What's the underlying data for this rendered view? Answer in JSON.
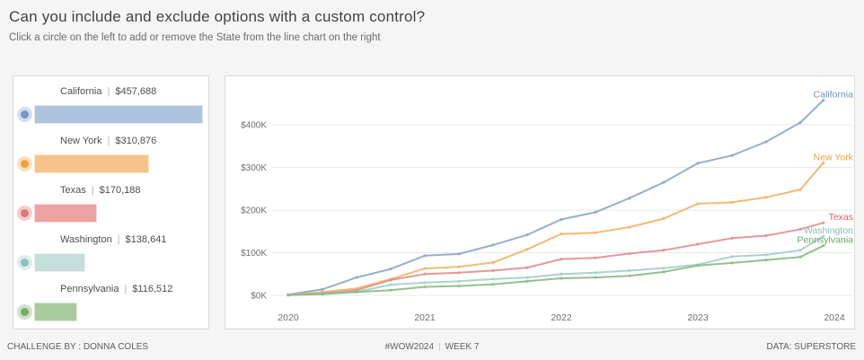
{
  "header": {
    "title": "Can you include and exclude options with a custom control?",
    "subtitle": "Click a circle on the left to add or remove the State from the line chart on the right"
  },
  "footer": {
    "left": "CHALLENGE BY : DONNA COLES",
    "center_tag": "#WOW2024",
    "center_sep": "|",
    "center_week": "WEEK 7",
    "right": "DATA: SUPERSTORE"
  },
  "control_panel": {
    "items": [
      {
        "state": "California",
        "separator": "|",
        "value": "$457,688",
        "value_k": 457.688,
        "included": true,
        "bar_color": "#aec3dd",
        "ring_color": "#aec3dd",
        "dot_color": "#7596bf"
      },
      {
        "state": "New York",
        "separator": "|",
        "value": "$310,876",
        "value_k": 310.876,
        "included": true,
        "bar_color": "#f6c48b",
        "ring_color": "#f6c48b",
        "dot_color": "#ef9f42"
      },
      {
        "state": "Texas",
        "separator": "|",
        "value": "$170,188",
        "value_k": 170.188,
        "included": true,
        "bar_color": "#eca3a2",
        "ring_color": "#eca3a2",
        "dot_color": "#dd7a79"
      },
      {
        "state": "Washington",
        "separator": "|",
        "value": "$138,641",
        "value_k": 138.641,
        "included": true,
        "bar_color": "#c6dfdc",
        "ring_color": "#c6dfdc",
        "dot_color": "#8fc2bc"
      },
      {
        "state": "Pennsylvania",
        "separator": "|",
        "value": "$116,512",
        "value_k": 116.512,
        "included": true,
        "bar_color": "#a9cb9d",
        "ring_color": "#a9cb9d",
        "dot_color": "#79ab6b"
      }
    ]
  },
  "chart_data": {
    "type": "line",
    "title": "",
    "xlabel": "",
    "ylabel": "",
    "unit": "cumulative sales, USD thousands",
    "grid": "horizontal",
    "legend_position": "line-end-labels",
    "x_ticks": [
      "2020",
      "2021",
      "2022",
      "2023",
      "2024"
    ],
    "x_tick_values": [
      2020,
      2021,
      2022,
      2023,
      2024
    ],
    "y_ticks": [
      "$0K",
      "$100K",
      "$200K",
      "$300K",
      "$400K"
    ],
    "y_tick_values": [
      0,
      100,
      200,
      300,
      400
    ],
    "xlim": [
      2020,
      2024
    ],
    "ylim": [
      0,
      495
    ],
    "x": [
      2020.0,
      2020.25,
      2020.5,
      2020.75,
      2021.0,
      2021.25,
      2021.5,
      2021.75,
      2022.0,
      2022.25,
      2022.5,
      2022.75,
      2023.0,
      2023.25,
      2023.5,
      2023.75,
      2023.92
    ],
    "series": [
      {
        "name": "California",
        "color": "#8aa7c6",
        "label_color": "#6e94bd",
        "values": [
          2,
          14,
          42,
          62,
          93,
          97,
          118,
          142,
          178,
          195,
          228,
          265,
          310,
          328,
          360,
          405,
          457.688
        ]
      },
      {
        "name": "New York",
        "color": "#f2b267",
        "label_color": "#ef9f42",
        "values": [
          1,
          8,
          16,
          38,
          63,
          67,
          77,
          108,
          144,
          147,
          160,
          180,
          215,
          218,
          230,
          248,
          310.876
        ]
      },
      {
        "name": "Texas",
        "color": "#e08f8e",
        "label_color": "#d95f5f",
        "values": [
          1,
          5,
          12,
          36,
          50,
          53,
          58,
          65,
          85,
          88,
          98,
          106,
          120,
          134,
          140,
          155,
          170.188
        ]
      },
      {
        "name": "Washington",
        "color": "#a3cdc8",
        "label_color": "#86bdb6",
        "values": [
          1,
          4,
          8,
          25,
          30,
          33,
          38,
          42,
          50,
          53,
          58,
          64,
          72,
          91,
          95,
          106,
          138.641
        ]
      },
      {
        "name": "Pennsylvania",
        "color": "#86bb7e",
        "label_color": "#6aa85d",
        "values": [
          0.5,
          3,
          8,
          12,
          20,
          22,
          26,
          33,
          40,
          42,
          46,
          55,
          70,
          76,
          83,
          90,
          116.512
        ]
      }
    ]
  }
}
